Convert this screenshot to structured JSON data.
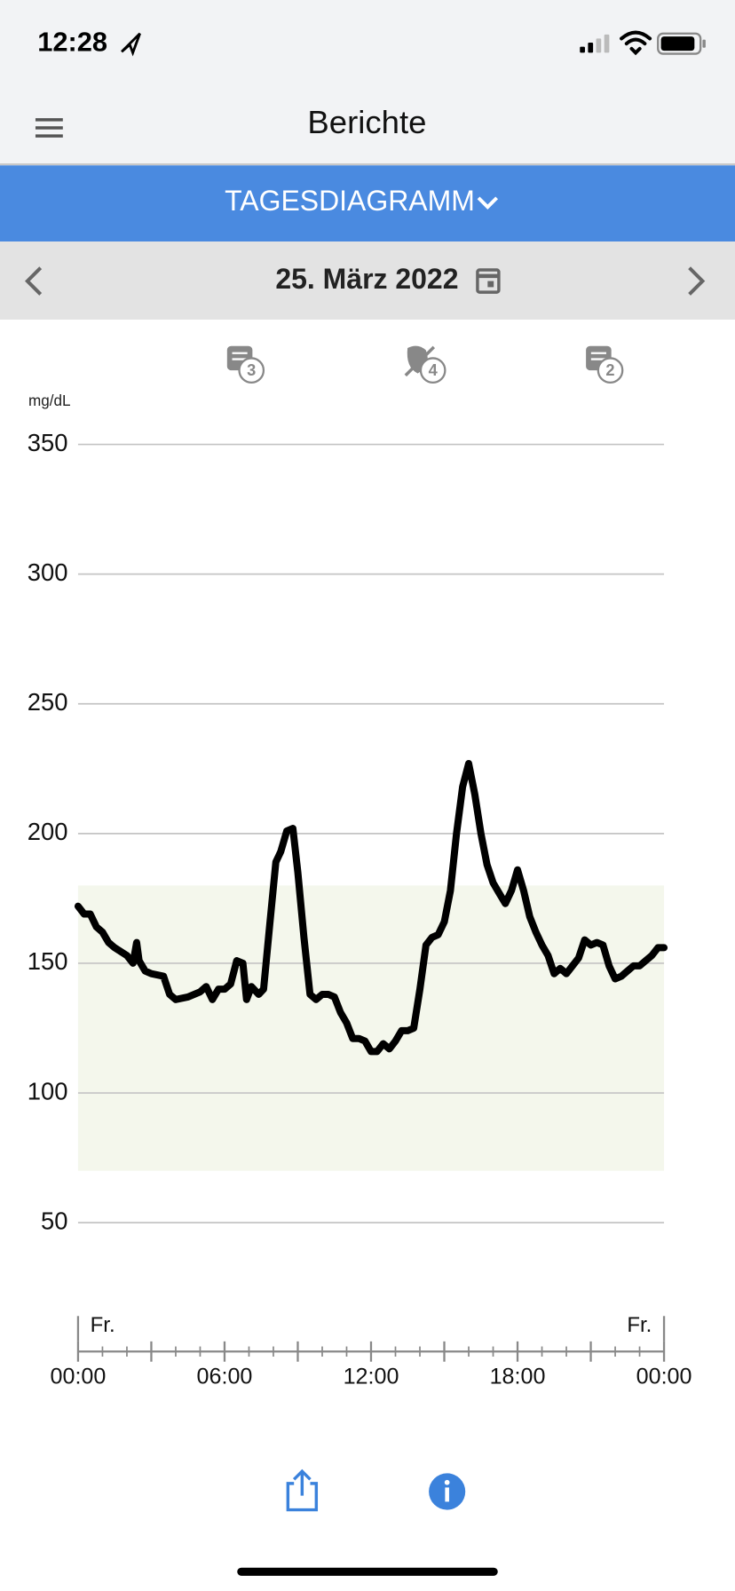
{
  "status_bar": {
    "time": "12:28"
  },
  "header": {
    "title": "Berichte"
  },
  "tab": {
    "label": "TAGESDIAGRAMM"
  },
  "date_bar": {
    "date": "25. März 2022"
  },
  "event_icons": [
    {
      "badge": "3"
    },
    {
      "badge": "4"
    },
    {
      "badge": "2"
    }
  ],
  "chart_data": {
    "type": "line",
    "y_unit": "mg/dL",
    "color": "#000000",
    "target_range": [
      70,
      180
    ],
    "target_color": "#f4f7ec",
    "ylim": [
      50,
      350
    ],
    "yticks": [
      50,
      100,
      150,
      200,
      250,
      300,
      350
    ],
    "grid": true,
    "xlim": [
      0,
      24
    ],
    "xticks": [
      {
        "value": 0,
        "label": "00:00"
      },
      {
        "value": 6,
        "label": "06:00"
      },
      {
        "value": 12,
        "label": "12:00"
      },
      {
        "value": 18,
        "label": "18:00"
      },
      {
        "value": 24,
        "label": "00:00"
      }
    ],
    "xmidticks": [
      3,
      9,
      15,
      21
    ],
    "xminorticks": [
      1,
      2,
      4,
      5,
      7,
      8,
      10,
      11,
      13,
      14,
      16,
      17,
      19,
      20,
      22,
      23
    ],
    "day_labels": [
      "Fr.",
      "Fr."
    ],
    "x": [
      0,
      0.25,
      0.5,
      0.75,
      1,
      1.25,
      1.5,
      2,
      2.25,
      2.4,
      2.5,
      2.75,
      3,
      3.5,
      3.75,
      4,
      4.5,
      5,
      5.25,
      5.5,
      5.75,
      6,
      6.25,
      6.5,
      6.75,
      6.9,
      7.1,
      7.4,
      7.6,
      7.85,
      8.1,
      8.3,
      8.55,
      8.8,
      9,
      9.25,
      9.5,
      9.75,
      10,
      10.25,
      10.5,
      10.75,
      11,
      11.25,
      11.5,
      11.75,
      12,
      12.25,
      12.5,
      12.75,
      13,
      13.25,
      13.5,
      13.75,
      14,
      14.25,
      14.5,
      14.75,
      15,
      15.25,
      15.5,
      15.75,
      16,
      16.25,
      16.5,
      16.75,
      17,
      17.25,
      17.5,
      17.75,
      18,
      18.25,
      18.5,
      18.75,
      19,
      19.25,
      19.5,
      19.75,
      20,
      20.25,
      20.5,
      20.75,
      21,
      21.25,
      21.5,
      21.75,
      22,
      22.25,
      22.5,
      22.75,
      23,
      23.25,
      23.5,
      23.75,
      24
    ],
    "values": [
      172,
      169,
      169,
      164,
      162,
      158,
      156,
      153,
      150,
      158,
      151,
      147,
      146,
      145,
      138,
      136,
      137,
      139,
      141,
      136,
      140,
      140,
      142,
      151,
      150,
      136,
      141,
      138,
      140,
      165,
      189,
      193,
      201,
      202,
      185,
      160,
      138,
      136,
      138,
      138,
      137,
      131,
      127,
      121,
      121,
      120,
      116,
      116,
      119,
      117,
      120,
      124,
      124,
      125,
      140,
      157,
      160,
      161,
      166,
      178,
      200,
      218,
      227,
      215,
      200,
      188,
      181,
      177,
      173,
      178,
      186,
      178,
      168,
      162,
      157,
      153,
      146,
      148,
      146,
      149,
      152,
      159,
      157,
      158,
      157,
      149,
      144,
      145,
      147,
      149,
      149,
      151,
      153,
      156,
      156
    ]
  }
}
